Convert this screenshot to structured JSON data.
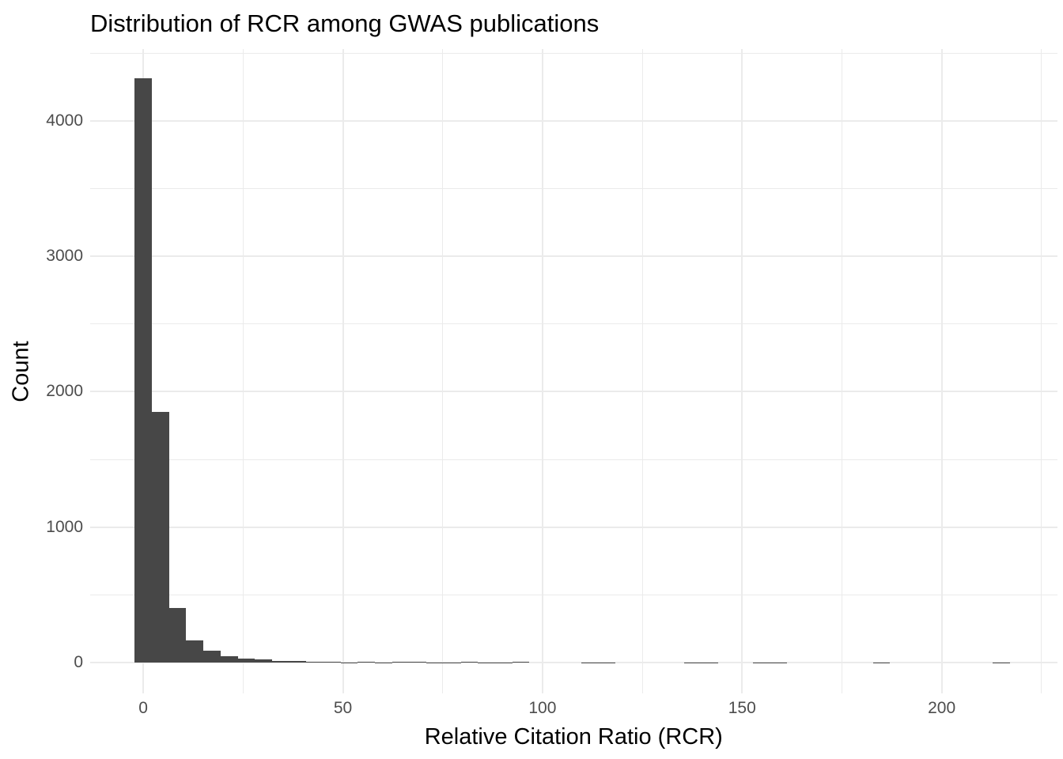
{
  "colors": {
    "background": "#FFFFFF",
    "bar_fill": "#474747",
    "gridline": "#EBEBEB",
    "tick_text": "#4D4D4D",
    "title_text": "#000000"
  },
  "chart_data": {
    "type": "bar",
    "subtype": "histogram",
    "title": "Distribution of RCR among GWAS publications",
    "xlabel": "Relative Citation Ratio (RCR)",
    "ylabel": "Count",
    "legend": "none",
    "grid": "on",
    "x_ticks": [
      0,
      50,
      100,
      150,
      200
    ],
    "y_ticks": [
      0,
      1000,
      2000,
      3000,
      4000
    ],
    "x_minor_ticks": [
      25,
      75,
      125,
      175,
      225
    ],
    "y_minor_ticks": [
      500,
      1500,
      2500,
      3500,
      4500
    ],
    "xlim": [
      -13.4,
      229.0
    ],
    "ylim": [
      -228,
      4531
    ],
    "bin_width": 4.3,
    "bins": [
      {
        "x": 0.0,
        "count": 4315
      },
      {
        "x": 4.3,
        "count": 1851
      },
      {
        "x": 8.6,
        "count": 401
      },
      {
        "x": 12.9,
        "count": 165
      },
      {
        "x": 17.2,
        "count": 86
      },
      {
        "x": 21.5,
        "count": 47
      },
      {
        "x": 25.8,
        "count": 31
      },
      {
        "x": 30.1,
        "count": 22
      },
      {
        "x": 34.4,
        "count": 13
      },
      {
        "x": 38.7,
        "count": 9
      },
      {
        "x": 43.0,
        "count": 8
      },
      {
        "x": 47.3,
        "count": 5
      },
      {
        "x": 51.6,
        "count": 2
      },
      {
        "x": 55.9,
        "count": 4
      },
      {
        "x": 60.2,
        "count": 2
      },
      {
        "x": 64.5,
        "count": 4
      },
      {
        "x": 68.8,
        "count": 4
      },
      {
        "x": 73.1,
        "count": 1
      },
      {
        "x": 77.4,
        "count": 2
      },
      {
        "x": 81.7,
        "count": 3
      },
      {
        "x": 86.0,
        "count": 2
      },
      {
        "x": 90.3,
        "count": 2
      },
      {
        "x": 94.6,
        "count": 3
      },
      {
        "x": 98.9,
        "count": 0
      },
      {
        "x": 103.2,
        "count": 0
      },
      {
        "x": 107.5,
        "count": 0
      },
      {
        "x": 111.8,
        "count": 2
      },
      {
        "x": 116.1,
        "count": 1
      },
      {
        "x": 120.4,
        "count": 0
      },
      {
        "x": 124.7,
        "count": 0
      },
      {
        "x": 129.0,
        "count": 0
      },
      {
        "x": 133.3,
        "count": 0
      },
      {
        "x": 137.6,
        "count": 1
      },
      {
        "x": 141.9,
        "count": 1
      },
      {
        "x": 146.2,
        "count": 0
      },
      {
        "x": 150.5,
        "count": 0
      },
      {
        "x": 154.8,
        "count": 1
      },
      {
        "x": 159.1,
        "count": 1
      },
      {
        "x": 163.4,
        "count": 0
      },
      {
        "x": 167.7,
        "count": 0
      },
      {
        "x": 172.0,
        "count": 0
      },
      {
        "x": 176.3,
        "count": 0
      },
      {
        "x": 180.6,
        "count": 0
      },
      {
        "x": 184.9,
        "count": 1
      },
      {
        "x": 189.2,
        "count": 0
      },
      {
        "x": 193.5,
        "count": 0
      },
      {
        "x": 197.8,
        "count": 0
      },
      {
        "x": 202.1,
        "count": 0
      },
      {
        "x": 206.4,
        "count": 0
      },
      {
        "x": 210.7,
        "count": 0
      },
      {
        "x": 215.0,
        "count": 1
      }
    ]
  }
}
